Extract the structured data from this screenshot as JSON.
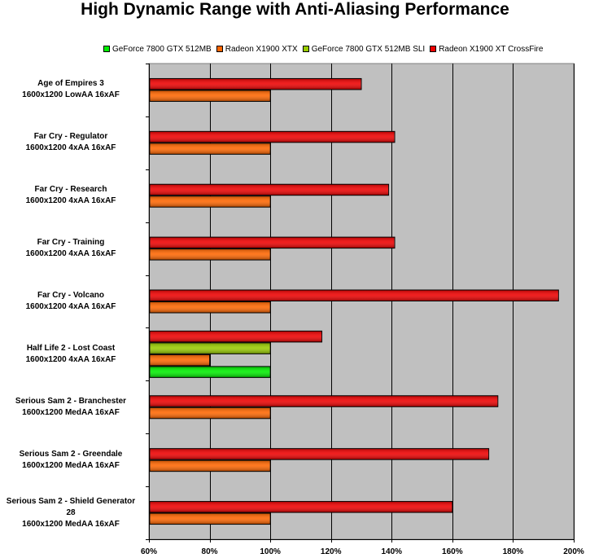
{
  "chart_data": {
    "type": "bar",
    "orientation": "horizontal",
    "title": "High Dynamic Range with Anti-Aliasing Performance",
    "xlabel": "",
    "ylabel": "",
    "xlim": [
      60,
      200
    ],
    "x_ticks": [
      "60%",
      "80%",
      "100%",
      "120%",
      "140%",
      "160%",
      "180%",
      "200%"
    ],
    "x_tick_values": [
      60,
      80,
      100,
      120,
      140,
      160,
      180,
      200
    ],
    "grid": true,
    "legend_position": "top",
    "categories": [
      [
        "Age of Empires 3",
        "1600x1200 LowAA 16xAF"
      ],
      [
        "Far Cry - Regulator",
        "1600x1200 4xAA 16xAF"
      ],
      [
        "Far Cry - Research",
        "1600x1200 4xAA 16xAF"
      ],
      [
        "Far Cry - Training",
        "1600x1200 4xAA 16xAF"
      ],
      [
        "Far Cry - Volcano",
        "1600x1200 4xAA 16xAF"
      ],
      [
        "Half Life 2 - Lost Coast",
        "1600x1200 4xAA 16xAF"
      ],
      [
        "Serious Sam 2 - Branchester",
        "1600x1200 MedAA 16xAF"
      ],
      [
        "Serious Sam 2 - Greendale",
        "1600x1200 MedAA 16xAF"
      ],
      [
        "Serious Sam 2 - Shield Generator",
        "28",
        "1600x1200 MedAA 16xAF"
      ]
    ],
    "series": [
      {
        "name": "GeForce 7800 GTX 512MB",
        "color": "#00ee00",
        "values": [
          null,
          null,
          null,
          null,
          null,
          100,
          null,
          null,
          null
        ]
      },
      {
        "name": "Radeon X1900 XTX",
        "color": "#ff6600",
        "values": [
          100,
          100,
          100,
          100,
          100,
          80,
          100,
          100,
          100
        ]
      },
      {
        "name": "GeForce 7800 GTX 512MB SLI",
        "color": "#99cc00",
        "values": [
          null,
          null,
          null,
          null,
          null,
          100,
          null,
          null,
          null
        ]
      },
      {
        "name": "Radeon X1900 XT CrossFire",
        "color": "#ee0000",
        "values": [
          130,
          141,
          139,
          141,
          195,
          117,
          175,
          172,
          160
        ]
      }
    ],
    "colors": {
      "plot_background": "#c0c0c0",
      "grid_line": "#000000",
      "bar_border": "#000000"
    }
  }
}
